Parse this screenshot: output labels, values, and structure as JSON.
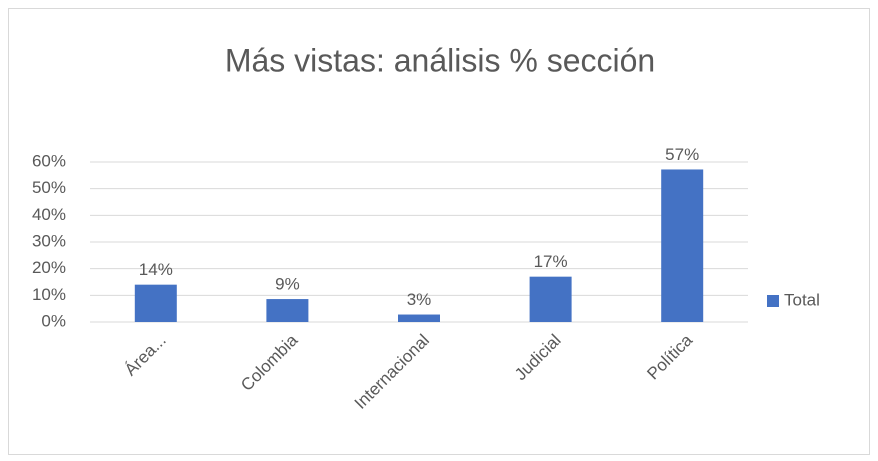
{
  "chart_data": {
    "type": "bar",
    "title": "Más vistas: análisis % sección",
    "categories": [
      "Área...",
      "Colombia",
      "Internacional",
      "Judicial",
      "Política"
    ],
    "series": [
      {
        "name": "Total",
        "color": "#4472c4",
        "values": [
          14,
          8.6,
          2.8,
          17,
          57.2
        ],
        "value_labels": [
          "14%",
          "9%",
          "3%",
          "17%",
          "57%"
        ]
      }
    ],
    "ylim": [
      0,
      60
    ],
    "yticks": [
      {
        "value": 0,
        "label": "0%"
      },
      {
        "value": 10,
        "label": "10%"
      },
      {
        "value": 20,
        "label": "20%"
      },
      {
        "value": 30,
        "label": "30%"
      },
      {
        "value": 40,
        "label": "40%"
      },
      {
        "value": 50,
        "label": "50%"
      },
      {
        "value": 60,
        "label": "60%"
      }
    ],
    "grid": true,
    "legend": "right"
  }
}
